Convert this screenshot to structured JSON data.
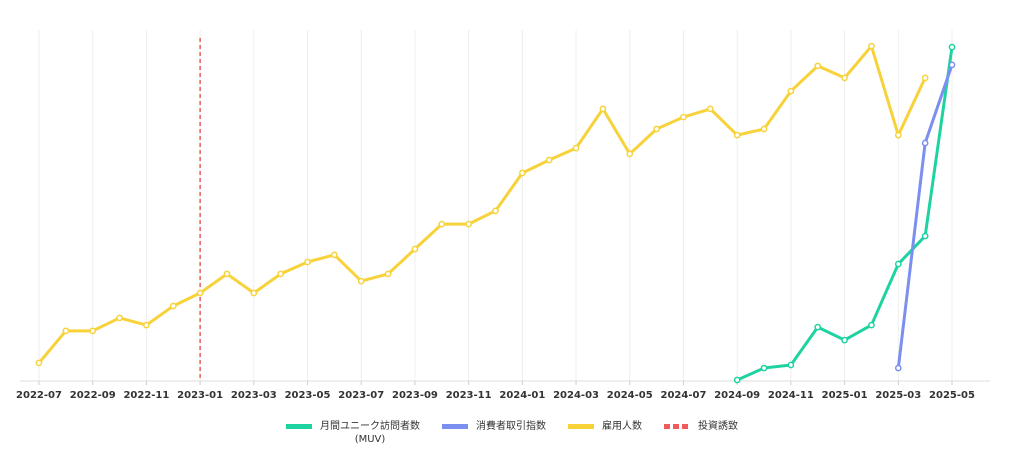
{
  "chart_data": {
    "type": "line",
    "categories": [
      "2022-07",
      null,
      "2022-09",
      null,
      "2022-11",
      null,
      "2023-01",
      null,
      "2023-03",
      null,
      "2023-05",
      null,
      "2023-07",
      null,
      "2023-09",
      null,
      "2023-11",
      null,
      "2024-01",
      null,
      "2024-03",
      null,
      "2024-05",
      null,
      "2024-07",
      null,
      "2024-09",
      null,
      "2024-11",
      null,
      "2025-01",
      null,
      "2025-03",
      null,
      "2025-05"
    ],
    "ylim": [
      0,
      100
    ],
    "grid": true,
    "series": [
      {
        "name": "月間ユニーク訪問者数\n(MUV)",
        "color": "#1fd3a0",
        "values": [
          null,
          null,
          null,
          null,
          null,
          null,
          null,
          null,
          null,
          null,
          null,
          null,
          null,
          null,
          null,
          null,
          null,
          null,
          null,
          null,
          null,
          null,
          null,
          null,
          null,
          null,
          0.3,
          3.8,
          4.7,
          15.8,
          12.0,
          16.4,
          34.3,
          42.5,
          97.9
        ]
      },
      {
        "name": "消費者取引指数",
        "color": "#7b8ff0",
        "values": [
          null,
          null,
          null,
          null,
          null,
          null,
          null,
          null,
          null,
          null,
          null,
          null,
          null,
          null,
          null,
          null,
          null,
          null,
          null,
          null,
          null,
          null,
          null,
          null,
          null,
          null,
          null,
          null,
          null,
          null,
          null,
          null,
          3.8,
          69.8,
          92.7
        ]
      },
      {
        "name": "雇用人数",
        "color": "#f7d23a",
        "values": [
          5.3,
          14.7,
          14.7,
          18.5,
          16.4,
          22.0,
          25.8,
          31.4,
          25.8,
          31.4,
          34.9,
          37.0,
          29.3,
          31.4,
          38.7,
          46.0,
          46.0,
          49.9,
          61.0,
          64.8,
          68.3,
          79.8,
          66.6,
          73.9,
          77.4,
          79.8,
          72.1,
          73.9,
          85.0,
          92.4,
          88.9,
          98.2,
          72.1,
          88.9,
          null
        ]
      }
    ],
    "marker_line": {
      "name": "投資誘致",
      "color": "#ef5a5a",
      "x": "2023-01"
    }
  }
}
